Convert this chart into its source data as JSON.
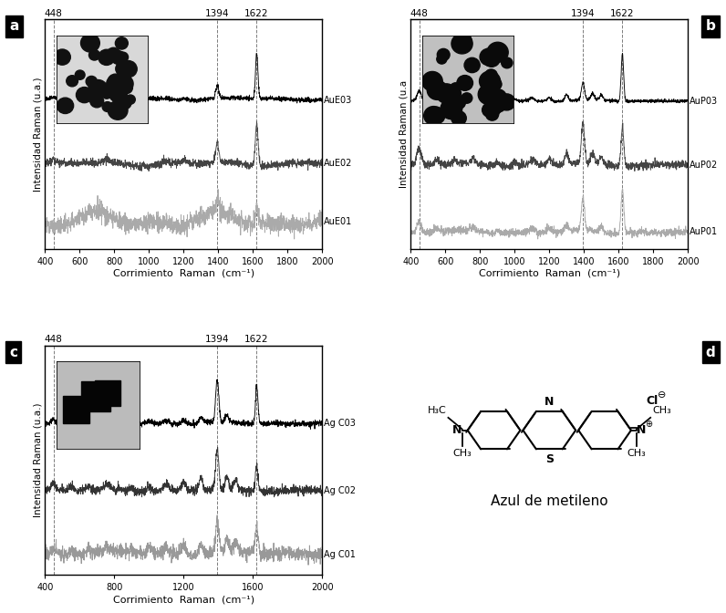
{
  "xlim": [
    400,
    2000
  ],
  "vlines": [
    448,
    1394,
    1622
  ],
  "vline_labels": [
    "448",
    "1394",
    "1622"
  ],
  "xlabel": "Corrimiento  Raman  (cm⁻¹)",
  "ylabel_a": "Intensidad Raman (u.a.)",
  "ylabel_b": "Intensidad Raman (u.a",
  "ylabel_c": "Intensidad Raman (u.a.)",
  "series_a": [
    "AuE01",
    "AuE02",
    "AuE03"
  ],
  "series_b": [
    "AuP01",
    "AuP02",
    "AuP03"
  ],
  "series_c": [
    "Ag C01",
    "Ag C02",
    "Ag C03"
  ],
  "panel_labels": [
    "a",
    "b",
    "c",
    "d"
  ],
  "mb_label": "Azul de metileno",
  "xticks_abc": [
    400,
    600,
    800,
    1000,
    1200,
    1400,
    1600,
    1800,
    2000
  ],
  "xticks_c": [
    400,
    800,
    1200,
    1600,
    2000
  ]
}
